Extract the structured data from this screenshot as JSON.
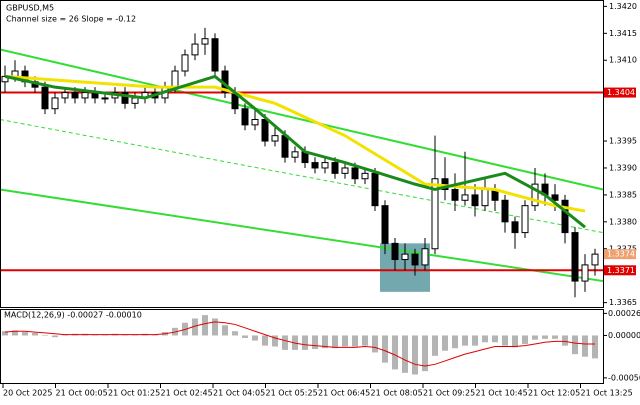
{
  "chart_data": {
    "type": "candlestick",
    "title": "GBPUSD,M5",
    "subtitle": "Channel size = 26 Slope = -0.12",
    "ylim": [
      1.3364,
      1.3421
    ],
    "yticks": [
      {
        "value": 1.342,
        "label": "1.3420"
      },
      1.3415,
      {
        "value": 1.341,
        "label": "1.3410"
      },
      1.3395,
      {
        "value": 1.339,
        "label": "1.3390"
      },
      1.3385,
      {
        "value": 1.338,
        "label": "1.3380"
      },
      1.3375,
      1.3365
    ],
    "xtick_labels": [
      "20 Oct 2025",
      "21 Oct 00:05",
      "21 Oct 01:25",
      "21 Oct 02:45",
      "21 Oct 04:05",
      "21 Oct 05:25",
      "21 Oct 06:45",
      "21 Oct 08:05",
      "21 Oct 09:25",
      "21 Oct 10:45",
      "21 Oct 12:05",
      "21 Oct 13:25"
    ],
    "candles": [
      [
        1.3406,
        1.3409,
        1.3404,
        1.3407
      ],
      [
        1.3407,
        1.341,
        1.3406,
        1.3408
      ],
      [
        1.3408,
        1.3409,
        1.3405,
        1.3406
      ],
      [
        1.3406,
        1.3407,
        1.3404,
        1.3405
      ],
      [
        1.3405,
        1.3406,
        1.34,
        1.3401
      ],
      [
        1.3401,
        1.3404,
        1.34,
        1.3403
      ],
      [
        1.3403,
        1.3405,
        1.3402,
        1.3404
      ],
      [
        1.3404,
        1.3405,
        1.3402,
        1.3403
      ],
      [
        1.3403,
        1.3405,
        1.3402,
        1.3404
      ],
      [
        1.3404,
        1.3405,
        1.3402,
        1.3403
      ],
      [
        1.3403,
        1.3404,
        1.3402,
        1.3403
      ],
      [
        1.3403,
        1.3405,
        1.3402,
        1.3404
      ],
      [
        1.3404,
        1.3405,
        1.3401,
        1.3402
      ],
      [
        1.3402,
        1.3404,
        1.3401,
        1.3403
      ],
      [
        1.3403,
        1.3405,
        1.3402,
        1.3404
      ],
      [
        1.3404,
        1.3405,
        1.3402,
        1.3403
      ],
      [
        1.3403,
        1.3406,
        1.3402,
        1.3405
      ],
      [
        1.3405,
        1.3409,
        1.3404,
        1.3408
      ],
      [
        1.3408,
        1.3412,
        1.3407,
        1.3411
      ],
      [
        1.3411,
        1.3415,
        1.341,
        1.3413
      ],
      [
        1.3413,
        1.3416,
        1.3411,
        1.3414
      ],
      [
        1.3414,
        1.3415,
        1.3407,
        1.3408
      ],
      [
        1.3408,
        1.3409,
        1.3403,
        1.3404
      ],
      [
        1.3404,
        1.3405,
        1.34,
        1.3401
      ],
      [
        1.3401,
        1.3402,
        1.3397,
        1.3398
      ],
      [
        1.3398,
        1.3401,
        1.3397,
        1.3399
      ],
      [
        1.3399,
        1.34,
        1.3394,
        1.3395
      ],
      [
        1.3395,
        1.3398,
        1.3394,
        1.3396
      ],
      [
        1.3396,
        1.3397,
        1.3391,
        1.3392
      ],
      [
        1.3392,
        1.3394,
        1.3391,
        1.3393
      ],
      [
        1.3393,
        1.3394,
        1.339,
        1.3391
      ],
      [
        1.3391,
        1.3392,
        1.3389,
        1.339
      ],
      [
        1.339,
        1.3392,
        1.3389,
        1.3391
      ],
      [
        1.3391,
        1.3392,
        1.3388,
        1.3389
      ],
      [
        1.3389,
        1.3391,
        1.3388,
        1.339
      ],
      [
        1.339,
        1.3391,
        1.3387,
        1.3388
      ],
      [
        1.3388,
        1.339,
        1.3387,
        1.3389
      ],
      [
        1.3389,
        1.339,
        1.3382,
        1.3383
      ],
      [
        1.3383,
        1.3384,
        1.3374,
        1.3376
      ],
      [
        1.3376,
        1.3377,
        1.3371,
        1.3373
      ],
      [
        1.3373,
        1.3376,
        1.3371,
        1.3374
      ],
      [
        1.3374,
        1.3375,
        1.337,
        1.3372
      ],
      [
        1.3372,
        1.3377,
        1.3371,
        1.3375
      ],
      [
        1.3375,
        1.3396,
        1.3374,
        1.3388
      ],
      [
        1.3388,
        1.3392,
        1.3384,
        1.3386
      ],
      [
        1.3386,
        1.3389,
        1.3382,
        1.3384
      ],
      [
        1.3384,
        1.3393,
        1.3383,
        1.3385
      ],
      [
        1.3385,
        1.3387,
        1.3381,
        1.3383
      ],
      [
        1.3383,
        1.3388,
        1.3382,
        1.3386
      ],
      [
        1.3386,
        1.3387,
        1.3382,
        1.3384
      ],
      [
        1.3384,
        1.3385,
        1.3378,
        1.338
      ],
      [
        1.338,
        1.3381,
        1.3375,
        1.3378
      ],
      [
        1.3378,
        1.3384,
        1.3377,
        1.3383
      ],
      [
        1.3383,
        1.339,
        1.3382,
        1.3387
      ],
      [
        1.3387,
        1.3389,
        1.3383,
        1.3385
      ],
      [
        1.3385,
        1.3387,
        1.3382,
        1.3384
      ],
      [
        1.3384,
        1.3385,
        1.3376,
        1.3378
      ],
      [
        1.3378,
        1.3379,
        1.3366,
        1.3369
      ],
      [
        1.3369,
        1.3374,
        1.3367,
        1.3372
      ],
      [
        1.3372,
        1.3375,
        1.337,
        1.3374
      ]
    ],
    "ma_lines": [
      {
        "color": "#f2e200",
        "x": [
          0,
          15,
          21,
          27,
          34,
          42,
          49,
          55,
          58
        ],
        "values": [
          1.3407,
          1.3405,
          1.3405,
          1.3402,
          1.3396,
          1.3387,
          1.3386,
          1.3383,
          1.3382
        ]
      },
      {
        "color": "#1a8a1a",
        "x": [
          0,
          5,
          14,
          21,
          25,
          30,
          34,
          41,
          43,
          50,
          54,
          58
        ],
        "values": [
          1.3407,
          1.3405,
          1.3403,
          1.3407,
          1.3401,
          1.3393,
          1.3391,
          1.3387,
          1.3386,
          1.3389,
          1.3385,
          1.3379
        ]
      }
    ],
    "channels": [
      {
        "color": "#33dd33",
        "dashed": false,
        "x": [
          -0.5,
          59.8
        ],
        "values": [
          1.3412,
          1.3386
        ]
      },
      {
        "color": "#33dd33",
        "dashed": true,
        "x": [
          -0.5,
          59.8
        ],
        "values": [
          1.3399,
          1.3378
        ]
      },
      {
        "color": "#33dd33",
        "dashed": false,
        "x": [
          -0.5,
          59.8
        ],
        "values": [
          1.3386,
          1.3369
        ]
      }
    ],
    "levels": [
      {
        "value": 1.3404,
        "color": "#e00000",
        "line": true
      },
      {
        "value": 1.3374,
        "color": "#f0a070",
        "line": false
      },
      {
        "value": 1.3371,
        "color": "#e00000",
        "line": true
      }
    ],
    "zone": {
      "x": [
        37.5,
        42.5
      ],
      "y": [
        1.3367,
        1.3376
      ],
      "color": "#5b9aa0"
    },
    "macd": {
      "label": "MACD(12,26,9) -0.00027 -0.00010",
      "ylim": [
        -0.00056,
        0.0003
      ],
      "yticks": [
        0.00026,
        {
          "value": 0,
          "label": "0.00000"
        },
        {
          "value": -0.0005,
          "label": "-0.00050"
        }
      ],
      "histogram": [
        5e-05,
        6e-05,
        4e-05,
        3e-05,
        0,
        -2e-05,
        1e-05,
        2e-05,
        2e-05,
        1e-05,
        1e-05,
        2e-05,
        1e-05,
        1e-05,
        2e-05,
        1e-05,
        4e-05,
        9e-05,
        0.00015,
        0.0002,
        0.00024,
        0.0002,
        0.00012,
        5e-05,
        -3e-05,
        -6e-05,
        -0.00012,
        -0.00013,
        -0.00017,
        -0.00017,
        -0.00017,
        -0.00016,
        -0.00015,
        -0.00015,
        -0.00013,
        -0.00013,
        -0.00012,
        -0.0002,
        -0.00032,
        -0.0004,
        -0.00044,
        -0.00046,
        -0.00042,
        -0.00024,
        -0.00018,
        -0.00015,
        -0.00012,
        -0.00012,
        -8e-05,
        -8e-05,
        -0.00012,
        -0.00014,
        -0.0001,
        -5e-05,
        -4e-05,
        -4e-05,
        -0.00012,
        -0.00022,
        -0.00025,
        -0.00027
      ],
      "signal": [
        4e-05,
        5e-05,
        5e-05,
        4e-05,
        3e-05,
        2e-05,
        1e-05,
        1e-05,
        1e-05,
        1e-05,
        1e-05,
        1e-05,
        1e-05,
        1e-05,
        1e-05,
        1e-05,
        2e-05,
        4e-05,
        7e-05,
        0.00011,
        0.00014,
        0.00016,
        0.00015,
        0.00013,
        9e-05,
        5e-05,
        1e-05,
        -3e-05,
        -6e-05,
        -9e-05,
        -0.00011,
        -0.00012,
        -0.00013,
        -0.00014,
        -0.00014,
        -0.00014,
        -0.00013,
        -0.00014,
        -0.00018,
        -0.00023,
        -0.00029,
        -0.00034,
        -0.00036,
        -0.00034,
        -0.0003,
        -0.00026,
        -0.00022,
        -0.00019,
        -0.00016,
        -0.00013,
        -0.00013,
        -0.00013,
        -0.00012,
        -0.0001,
        -8e-05,
        -7e-05,
        -7e-05,
        -9e-05,
        -0.0001,
        -0.0001
      ],
      "histogram_color": "#b4b4b4",
      "signal_color": "#e00000"
    }
  }
}
